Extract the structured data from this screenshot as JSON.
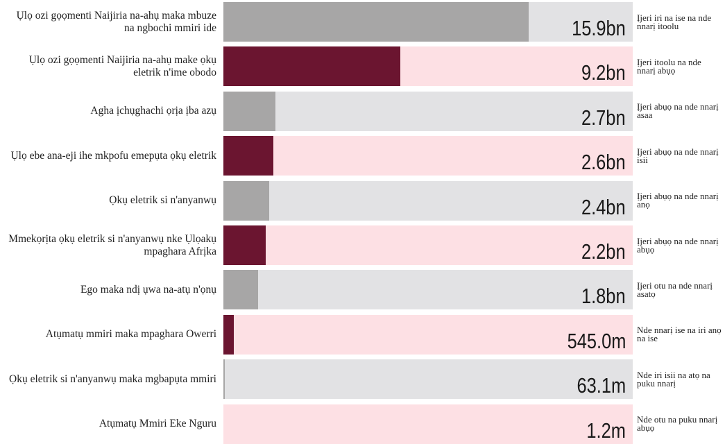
{
  "chart_data": {
    "type": "bar",
    "orientation": "horizontal",
    "categories": [
      "Ụlọ ozi gọọmenti Naijiria na-ahụ maka mbuze na ngbochi mmiri ide",
      "Ụlọ ozi gọọmenti Naijiria na-ahụ make ọkụ eletrik n'ime obodo",
      "Agha ịchụghachi ọrịa ịba azụ",
      "Ụlọ ebe ana-eji ihe mkpofu emepụta ọkụ eletrik",
      "Ọkụ eletrik si n'anyanwụ",
      "Mmekọrịta ọkụ eletrik si n'anyanwụ nke Ụlọakụ mpaghara Afrịka",
      "Ego maka ndị ụwa na-atụ n'ọnụ",
      "Atụmatụ mmiri maka mpaghara Owerri",
      "Ọkụ eletrik si n'anyanwụ maka mgbapụta mmiri",
      "Atụmatụ Mmiri Eke Nguru"
    ],
    "values": [
      15900000000,
      9200000000,
      2700000000,
      2600000000,
      2400000000,
      2200000000,
      1800000000,
      545000000,
      63100000,
      1200000
    ],
    "value_labels": [
      "15.9bn",
      "9.2bn",
      "2.7bn",
      "2.6bn",
      "2.4bn",
      "2.2bn",
      "1.8bn",
      "545.0m",
      "63.1m",
      "1.2m"
    ],
    "notes": [
      "Ịjeri iri na ise na nde nnarị itoolu",
      "Ịjeri itoolu na nde nnarị abụọ",
      "Ịjeri abụọ na nde nnarị asaa",
      "Ịjeri abụọ na nde nnarị isii",
      "Ịjeri abụọ na nde nnarị anọ",
      "Ịjeri abụọ na nde nnarị abụọ",
      "Ịjeri otu na nde nnarị asatọ",
      "Nde nnarị ise na iri anọ na ise",
      "Nde iri isii na atọ na puku nnarị",
      "Nde otu na puku nnarị abụọ"
    ],
    "colors": [
      "#a7a6a6",
      "#6b1530",
      "#a7a6a6",
      "#6b1530",
      "#a7a6a6",
      "#6b1530",
      "#a7a6a6",
      "#6b1530",
      "#a7a6a6",
      "#6b1530"
    ],
    "track_colors": [
      "#e2e2e4",
      "#fde0e4",
      "#e2e2e4",
      "#fde0e4",
      "#e2e2e4",
      "#fde0e4",
      "#e2e2e4",
      "#fde0e4",
      "#e2e2e4",
      "#fde0e4"
    ],
    "xlim": [
      0,
      21300000000
    ]
  }
}
